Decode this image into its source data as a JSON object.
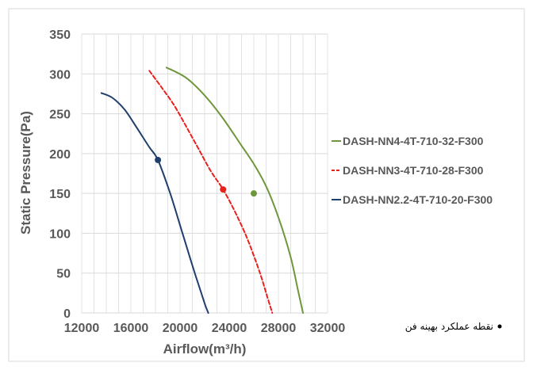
{
  "chart_data": {
    "type": "line",
    "xlabel": "Airflow(m³/h)",
    "ylabel": "Static Pressure(Pa)",
    "xlim": [
      12000,
      32000
    ],
    "ylim": [
      0,
      350
    ],
    "xticks": [
      12000,
      16000,
      20000,
      24000,
      28000,
      32000
    ],
    "yticks": [
      0,
      50,
      100,
      150,
      200,
      250,
      300,
      350
    ],
    "grid": true,
    "legend_position": "right",
    "series": [
      {
        "name": "DASH-NN4-4T-710-32-F300",
        "color": "#70963c",
        "dash": "solid",
        "x": [
          18900,
          20500,
          22000,
          23500,
          25000,
          26000,
          27000,
          28000,
          29000,
          29600,
          30000
        ],
        "y": [
          308,
          295,
          273,
          244,
          210,
          187,
          159,
          120,
          70,
          28,
          0
        ],
        "operating_point": {
          "x": 26000,
          "y": 150
        }
      },
      {
        "name": "DASH-NN3-4T-710-28-F300",
        "color": "#e8211c",
        "dash": "dashed",
        "x": [
          17500,
          18500,
          19500,
          20500,
          21500,
          22500,
          23500,
          24500,
          25500,
          26500,
          27200,
          27500
        ],
        "y": [
          304,
          283,
          261,
          234,
          206,
          178,
          155,
          126,
          92,
          50,
          15,
          0
        ],
        "operating_point": {
          "x": 23500,
          "y": 155
        }
      },
      {
        "name": "DASH-NN2.2-4T-710-20-F300",
        "color": "#1f3f6e",
        "dash": "solid",
        "x": [
          13600,
          14500,
          15500,
          16500,
          17500,
          18200,
          19200,
          20200,
          21200,
          22000,
          22300
        ],
        "y": [
          276,
          270,
          255,
          232,
          208,
          192,
          150,
          100,
          50,
          12,
          0
        ],
        "operating_point": {
          "x": 18200,
          "y": 192
        }
      }
    ],
    "annotations": [
      {
        "text": "نقطه عملکرد بهینه فن",
        "marker": "dot"
      }
    ]
  }
}
